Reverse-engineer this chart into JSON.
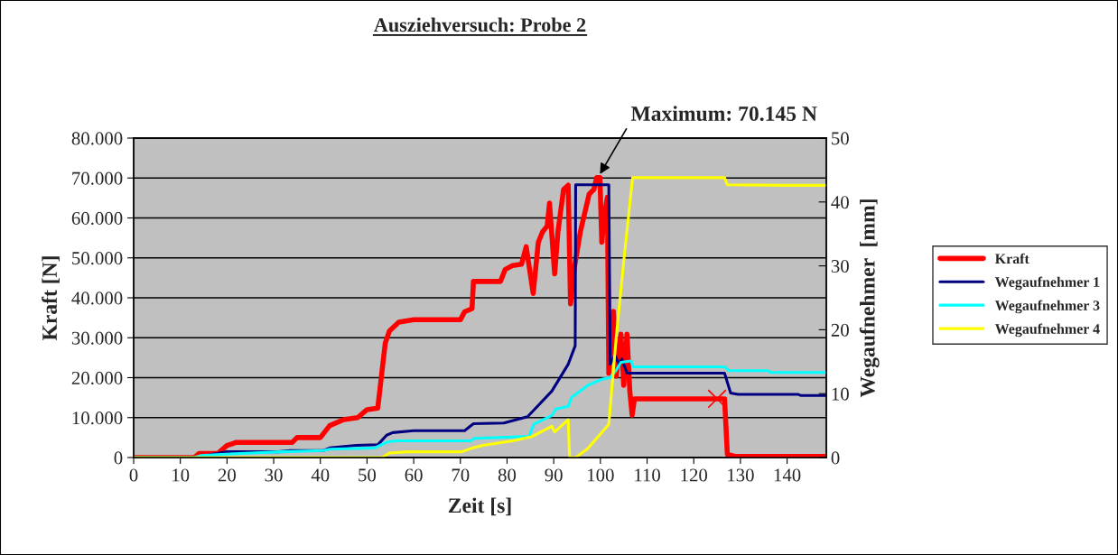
{
  "chart_data": {
    "type": "line",
    "title": "Ausziehversuch: Probe 2",
    "xlabel": "Zeit [s]",
    "ylabel": "Kraft [N]",
    "y2label": "Wegaufnehmer  [mm]",
    "xlim": [
      0,
      148.4
    ],
    "xticks": [
      0,
      10,
      20,
      30,
      40,
      50,
      60,
      70,
      80,
      90,
      100,
      110,
      120,
      130,
      140
    ],
    "ylim": [
      0,
      80000
    ],
    "yticks": [
      {
        "value": 0,
        "label": "0"
      },
      {
        "value": 10000,
        "label": "10.000"
      },
      {
        "value": 20000,
        "label": "20.000"
      },
      {
        "value": 30000,
        "label": "30.000"
      },
      {
        "value": 40000,
        "label": "40.000"
      },
      {
        "value": 50000,
        "label": "50.000"
      },
      {
        "value": 60000,
        "label": "60.000"
      },
      {
        "value": 70000,
        "label": "70.000"
      },
      {
        "value": 80000,
        "label": "80.000"
      }
    ],
    "y2lim": [
      0,
      50
    ],
    "y2ticks": [
      0,
      10,
      20,
      30,
      40,
      50
    ],
    "grid": "y",
    "legend": "right",
    "marker": "none",
    "line_style": "solid",
    "annotations": [
      {
        "text": "Maximum: 70.145 N",
        "x": 99.5,
        "y": 70145
      }
    ],
    "series": [
      {
        "name": "Kraft",
        "color": "#ff0000",
        "x": [
          0,
          13,
          14,
          18,
          20,
          22,
          34,
          35,
          40,
          42,
          45,
          48,
          50,
          52.3,
          53.9,
          54.8,
          56.8,
          60,
          70,
          70.9,
          72.5,
          72.8,
          75.4,
          78.6,
          79.6,
          81.2,
          83.1,
          84.1,
          85.6,
          86.7,
          87.6,
          88.6,
          89.1,
          90.2,
          90.9,
          92.1,
          93.1,
          93.6,
          94.2,
          95.7,
          97.6,
          98.6,
          99.2,
          99.9,
          100.3,
          100.8,
          101.5,
          101.8,
          102.8,
          103.4,
          104.4,
          105,
          105.7,
          106.3,
          106.8,
          107.3,
          113.4,
          119.8,
          125,
          126.6,
          127.2,
          128.8,
          148.4
        ],
        "values": [
          0,
          0,
          1000,
          1000,
          3000,
          3800,
          3800,
          5000,
          5000,
          8000,
          9500,
          10000,
          12000,
          12400,
          28600,
          31700,
          33900,
          34500,
          34500,
          36500,
          37300,
          44100,
          44100,
          44100,
          47100,
          48100,
          48400,
          52800,
          41100,
          53900,
          56500,
          58000,
          63700,
          46000,
          56500,
          67100,
          68200,
          38500,
          46000,
          56500,
          66000,
          67100,
          70100,
          70100,
          53900,
          60300,
          65200,
          21100,
          36600,
          20400,
          30900,
          18100,
          30900,
          16600,
          10600,
          14700,
          14700,
          14700,
          14700,
          14700,
          800,
          300,
          300
        ]
      },
      {
        "name": "Wegaufnehmer 1",
        "color": "#000080",
        "axis": "y2",
        "x": [
          0,
          13,
          20,
          31,
          33.6,
          40.7,
          42,
          47.7,
          52.3,
          54.2,
          55.5,
          60,
          70.9,
          72.8,
          79.3,
          84.4,
          89.6,
          93.1,
          94.6,
          94.7,
          101.8,
          102.1,
          103.1,
          104,
          104.6,
          105.7,
          106.9,
          126.6,
          127.9,
          129.5,
          142.3,
          143,
          148.4
        ],
        "values": [
          0,
          0,
          0.9,
          0.9,
          1.1,
          1.1,
          1.5,
          1.9,
          2.0,
          3.5,
          3.9,
          4.2,
          4.2,
          5.3,
          5.4,
          6.4,
          10.4,
          14.6,
          17.5,
          42.7,
          42.7,
          14.6,
          16,
          14.6,
          15.4,
          13.2,
          13.2,
          13.2,
          10.1,
          9.9,
          9.9,
          9.7,
          9.7
        ]
      },
      {
        "name": "Wegaufnehmer 3",
        "color": "#00ffff",
        "axis": "y2",
        "x": [
          0,
          13,
          14.3,
          18.8,
          31.7,
          40.7,
          42,
          51.6,
          54.2,
          56.1,
          72.2,
          73,
          84.7,
          85.7,
          89.6,
          90.5,
          93.1,
          93.8,
          97.3,
          100.5,
          102.1,
          103.4,
          104.4,
          106.6,
          107,
          126.6,
          127.5,
          135.9,
          136.5,
          148.4
        ],
        "values": [
          0,
          0,
          0.3,
          0.5,
          0.9,
          1.1,
          1.3,
          1.5,
          2.4,
          2.6,
          2.6,
          3.0,
          3.3,
          5.2,
          6.6,
          7.6,
          8.0,
          9.4,
          11.3,
          12.3,
          12.5,
          13.7,
          14.9,
          15.1,
          14.2,
          14.2,
          13.6,
          13.6,
          13.3,
          13.3
        ]
      },
      {
        "name": "Wegaufnehmer 4",
        "color": "#ffff00",
        "axis": "y2",
        "x": [
          0,
          53.2,
          54.8,
          58.7,
          70.3,
          72.2,
          74.8,
          81.2,
          85.4,
          89.6,
          90.2,
          93.1,
          93.4,
          94.7,
          97.3,
          101.8,
          103.4,
          105,
          106.9,
          112.7,
          126.6,
          127.2,
          139.1,
          148.4
        ],
        "values": [
          0,
          0,
          0.7,
          0.9,
          0.9,
          1.4,
          1.9,
          2.6,
          3.3,
          4.9,
          4.0,
          5.9,
          0,
          0,
          1.4,
          5.2,
          18.9,
          30.7,
          43.8,
          43.8,
          43.8,
          42.7,
          42.6,
          42.6
        ]
      },
      {
        "type": "scatter",
        "color": "#ff0000",
        "marker": "cross",
        "x": [
          125
        ],
        "values": [
          14700
        ]
      }
    ]
  }
}
